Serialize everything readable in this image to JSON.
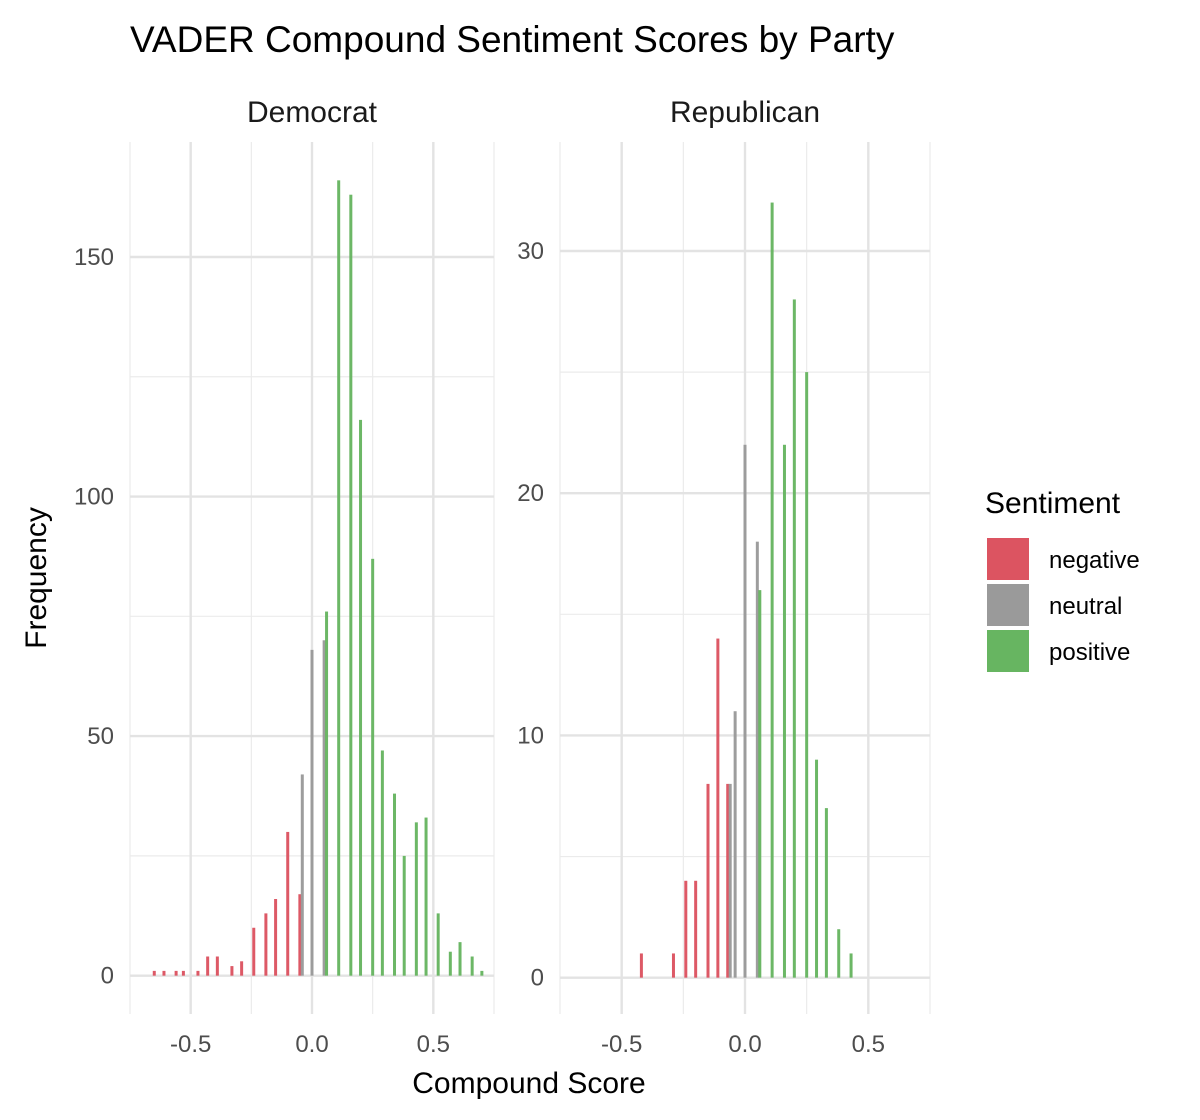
{
  "chart_data": {
    "type": "bar",
    "title": "VADER Compound Sentiment Scores by Party",
    "xlabel": "Compound Score",
    "ylabel": "Frequency",
    "legend": {
      "title": "Sentiment",
      "position": "right",
      "entries": [
        {
          "key": "negative",
          "label": "negative",
          "color": "#DC5461"
        },
        {
          "key": "neutral",
          "label": "neutral",
          "color": "#9A9A9A"
        },
        {
          "key": "positive",
          "label": "positive",
          "color": "#67B561"
        }
      ]
    },
    "grid": true,
    "x_ticks": [
      {
        "value": -0.5,
        "label": "-0.5"
      },
      {
        "value": 0.0,
        "label": "0.0"
      },
      {
        "value": 0.5,
        "label": "0.5"
      }
    ],
    "panels": [
      {
        "title": "Democrat",
        "xlim": [
          -0.75,
          0.75
        ],
        "ylim": [
          -8,
          174
        ],
        "y_ticks": [
          {
            "value": 0,
            "label": "0"
          },
          {
            "value": 50,
            "label": "50"
          },
          {
            "value": 100,
            "label": "100"
          },
          {
            "value": 150,
            "label": "150"
          }
        ],
        "bars": [
          {
            "x": -0.65,
            "count": 1,
            "sentiment": "negative"
          },
          {
            "x": -0.61,
            "count": 1,
            "sentiment": "negative"
          },
          {
            "x": -0.56,
            "count": 1,
            "sentiment": "negative"
          },
          {
            "x": -0.53,
            "count": 1,
            "sentiment": "negative"
          },
          {
            "x": -0.47,
            "count": 1,
            "sentiment": "negative"
          },
          {
            "x": -0.43,
            "count": 4,
            "sentiment": "negative"
          },
          {
            "x": -0.39,
            "count": 4,
            "sentiment": "negative"
          },
          {
            "x": -0.33,
            "count": 2,
            "sentiment": "negative"
          },
          {
            "x": -0.29,
            "count": 3,
            "sentiment": "negative"
          },
          {
            "x": -0.24,
            "count": 10,
            "sentiment": "negative"
          },
          {
            "x": -0.19,
            "count": 13,
            "sentiment": "negative"
          },
          {
            "x": -0.15,
            "count": 16,
            "sentiment": "negative"
          },
          {
            "x": -0.1,
            "count": 30,
            "sentiment": "negative"
          },
          {
            "x": -0.05,
            "count": 17,
            "sentiment": "negative"
          },
          {
            "x": -0.04,
            "count": 42,
            "sentiment": "neutral"
          },
          {
            "x": 0.0,
            "count": 68,
            "sentiment": "neutral"
          },
          {
            "x": 0.05,
            "count": 70,
            "sentiment": "neutral"
          },
          {
            "x": 0.06,
            "count": 76,
            "sentiment": "positive"
          },
          {
            "x": 0.11,
            "count": 166,
            "sentiment": "positive"
          },
          {
            "x": 0.16,
            "count": 163,
            "sentiment": "positive"
          },
          {
            "x": 0.2,
            "count": 116,
            "sentiment": "positive"
          },
          {
            "x": 0.25,
            "count": 87,
            "sentiment": "positive"
          },
          {
            "x": 0.29,
            "count": 47,
            "sentiment": "positive"
          },
          {
            "x": 0.34,
            "count": 38,
            "sentiment": "positive"
          },
          {
            "x": 0.38,
            "count": 25,
            "sentiment": "positive"
          },
          {
            "x": 0.43,
            "count": 32,
            "sentiment": "positive"
          },
          {
            "x": 0.47,
            "count": 33,
            "sentiment": "positive"
          },
          {
            "x": 0.52,
            "count": 13,
            "sentiment": "positive"
          },
          {
            "x": 0.57,
            "count": 5,
            "sentiment": "positive"
          },
          {
            "x": 0.61,
            "count": 7,
            "sentiment": "positive"
          },
          {
            "x": 0.66,
            "count": 4,
            "sentiment": "positive"
          },
          {
            "x": 0.7,
            "count": 1,
            "sentiment": "positive"
          }
        ]
      },
      {
        "title": "Republican",
        "xlim": [
          -0.75,
          0.75
        ],
        "ylim": [
          -1.5,
          34.5
        ],
        "y_ticks": [
          {
            "value": 0,
            "label": "0"
          },
          {
            "value": 10,
            "label": "10"
          },
          {
            "value": 20,
            "label": "20"
          },
          {
            "value": 30,
            "label": "30"
          }
        ],
        "bars": [
          {
            "x": -0.42,
            "count": 1,
            "sentiment": "negative"
          },
          {
            "x": -0.29,
            "count": 1,
            "sentiment": "negative"
          },
          {
            "x": -0.24,
            "count": 4,
            "sentiment": "negative"
          },
          {
            "x": -0.2,
            "count": 4,
            "sentiment": "negative"
          },
          {
            "x": -0.15,
            "count": 8,
            "sentiment": "negative"
          },
          {
            "x": -0.11,
            "count": 14,
            "sentiment": "negative"
          },
          {
            "x": -0.07,
            "count": 8,
            "sentiment": "negative"
          },
          {
            "x": -0.06,
            "count": 8,
            "sentiment": "neutral"
          },
          {
            "x": -0.04,
            "count": 11,
            "sentiment": "neutral"
          },
          {
            "x": 0.0,
            "count": 22,
            "sentiment": "neutral"
          },
          {
            "x": 0.05,
            "count": 18,
            "sentiment": "neutral"
          },
          {
            "x": 0.06,
            "count": 16,
            "sentiment": "positive"
          },
          {
            "x": 0.11,
            "count": 32,
            "sentiment": "positive"
          },
          {
            "x": 0.16,
            "count": 22,
            "sentiment": "positive"
          },
          {
            "x": 0.2,
            "count": 28,
            "sentiment": "positive"
          },
          {
            "x": 0.25,
            "count": 25,
            "sentiment": "positive"
          },
          {
            "x": 0.29,
            "count": 9,
            "sentiment": "positive"
          },
          {
            "x": 0.33,
            "count": 7,
            "sentiment": "positive"
          },
          {
            "x": 0.38,
            "count": 2,
            "sentiment": "positive"
          },
          {
            "x": 0.43,
            "count": 1,
            "sentiment": "positive"
          }
        ]
      }
    ]
  }
}
